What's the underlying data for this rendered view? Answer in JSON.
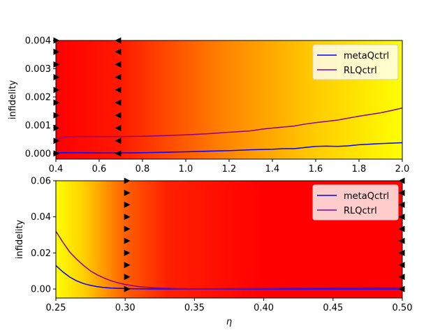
{
  "chart_data": [
    {
      "type": "line",
      "xlabel": "",
      "ylabel": "infidelity",
      "xlim": [
        0.4,
        2.0
      ],
      "ylim": [
        -0.0002,
        0.004
      ],
      "xticks": [
        0.4,
        0.6,
        0.8,
        1.0,
        1.2,
        1.4,
        1.6,
        1.8,
        2.0
      ],
      "xtick_labels": [
        "0.4",
        "0.6",
        "0.8",
        "1.0",
        "1.2",
        "1.4",
        "1.6",
        "1.8",
        "2.0"
      ],
      "yticks": [
        0.0,
        0.001,
        0.002,
        0.003,
        0.004
      ],
      "ytick_labels": [
        "0.000",
        "0.001",
        "0.002",
        "0.003",
        "0.004"
      ],
      "grid": false,
      "legend_position": "top-right",
      "background": {
        "type": "gradient",
        "stops": [
          {
            "x": 0.4,
            "color": "#ff0000"
          },
          {
            "x": 0.69,
            "color": "#ff1800"
          },
          {
            "x": 1.2,
            "color": "#ff8800"
          },
          {
            "x": 1.6,
            "color": "#ffcc00"
          },
          {
            "x": 2.0,
            "color": "#ffff00"
          }
        ]
      },
      "markers": [
        {
          "x": 0.4,
          "direction": "right",
          "y": [
            0.0,
            0.00045,
            0.0009,
            0.00135,
            0.0018,
            0.00225,
            0.0027,
            0.00315,
            0.0036,
            0.004
          ]
        },
        {
          "x": 0.69,
          "direction": "left",
          "y": [
            0.0,
            0.00045,
            0.0009,
            0.00135,
            0.0018,
            0.00225,
            0.0027,
            0.00315,
            0.0036,
            0.004
          ]
        }
      ],
      "series": [
        {
          "name": "metaQctrl",
          "color": "#0000ff",
          "x": [
            0.4,
            0.45,
            0.5,
            0.6,
            0.7,
            0.8,
            0.9,
            1.0,
            1.1,
            1.2,
            1.3,
            1.4,
            1.45,
            1.5,
            1.55,
            1.6,
            1.65,
            1.7,
            1.75,
            1.8,
            1.9,
            2.0
          ],
          "y": [
            3e-05,
            3e-05,
            3e-05,
            2e-05,
            2e-05,
            3e-05,
            4e-05,
            6e-05,
            8e-05,
            0.0001,
            0.00013,
            0.00015,
            0.00017,
            0.00017,
            0.00021,
            0.00025,
            0.00026,
            0.00025,
            0.00027,
            0.00031,
            0.00035,
            0.00038
          ]
        },
        {
          "name": "RLQctrl",
          "color": "#8b008b",
          "x": [
            0.4,
            0.42,
            0.45,
            0.5,
            0.6,
            0.7,
            0.8,
            0.9,
            1.0,
            1.1,
            1.2,
            1.3,
            1.35,
            1.4,
            1.5,
            1.55,
            1.6,
            1.7,
            1.8,
            1.9,
            1.95,
            2.0
          ],
          "y": [
            0.00045,
            0.00055,
            0.00059,
            0.0006,
            0.0006,
            0.0006,
            0.00061,
            0.00063,
            0.00066,
            0.0007,
            0.00075,
            0.0008,
            0.00086,
            0.0009,
            0.00097,
            0.00104,
            0.00109,
            0.00118,
            0.00132,
            0.00144,
            0.00152,
            0.00161
          ]
        }
      ]
    },
    {
      "type": "line",
      "xlabel": "η",
      "ylabel": "infidelity",
      "xlim": [
        0.25,
        0.5
      ],
      "ylim": [
        -0.005,
        0.06
      ],
      "xticks": [
        0.25,
        0.3,
        0.35,
        0.4,
        0.45,
        0.5
      ],
      "xtick_labels": [
        "0.25",
        "0.30",
        "0.35",
        "0.40",
        "0.45",
        "0.50"
      ],
      "yticks": [
        0.0,
        0.02,
        0.04,
        0.06
      ],
      "ytick_labels": [
        "0.00",
        "0.02",
        "0.04",
        "0.06"
      ],
      "grid": false,
      "legend_position": "top-right",
      "background": {
        "type": "gradient",
        "stops": [
          {
            "x": 0.25,
            "color": "#ffff00"
          },
          {
            "x": 0.27,
            "color": "#ffd000"
          },
          {
            "x": 0.3,
            "color": "#ff6000"
          },
          {
            "x": 0.33,
            "color": "#ff2000"
          },
          {
            "x": 0.4,
            "color": "#ff0000"
          },
          {
            "x": 0.5,
            "color": "#ff0000"
          }
        ]
      },
      "markers": [
        {
          "x": 0.301,
          "direction": "right",
          "y": [
            0.0,
            0.0067,
            0.0133,
            0.02,
            0.0267,
            0.0333,
            0.04,
            0.0467,
            0.0533,
            0.06
          ]
        },
        {
          "x": 0.5,
          "direction": "left",
          "y": [
            0.0,
            0.0067,
            0.0133,
            0.02,
            0.0267,
            0.0333,
            0.04,
            0.0467,
            0.0533,
            0.06
          ]
        }
      ],
      "series": [
        {
          "name": "metaQctrl",
          "color": "#0000ff",
          "x": [
            0.25,
            0.255,
            0.26,
            0.265,
            0.27,
            0.275,
            0.28,
            0.285,
            0.29,
            0.3,
            0.31,
            0.32,
            0.35,
            0.4,
            0.45,
            0.5
          ],
          "y": [
            0.013,
            0.0095,
            0.0066,
            0.0045,
            0.003,
            0.002,
            0.0013,
            0.0008,
            0.0005,
            0.0002,
            0.0001,
            5e-05,
            0.0,
            0.0,
            0.0,
            0.0
          ]
        },
        {
          "name": "RLQctrl",
          "color": "#8b008b",
          "x": [
            0.25,
            0.255,
            0.26,
            0.265,
            0.27,
            0.275,
            0.28,
            0.285,
            0.29,
            0.295,
            0.3,
            0.31,
            0.32,
            0.33,
            0.34,
            0.35,
            0.4,
            0.45,
            0.5
          ],
          "y": [
            0.032,
            0.026,
            0.0205,
            0.0165,
            0.013,
            0.01,
            0.0078,
            0.006,
            0.0045,
            0.0034,
            0.0025,
            0.0013,
            0.0007,
            0.0004,
            0.0002,
            0.0001,
            0.0003,
            0.0006,
            0.0008
          ]
        }
      ]
    }
  ]
}
